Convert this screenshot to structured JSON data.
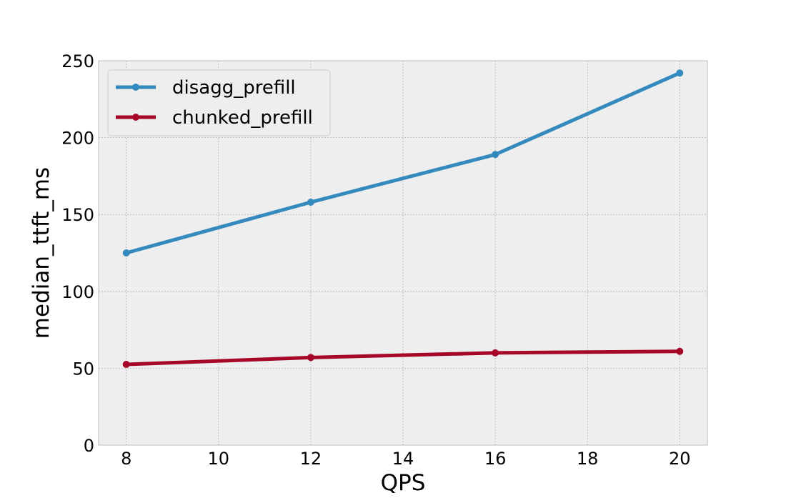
{
  "chart_data": {
    "type": "line",
    "title": "",
    "xlabel": "QPS",
    "ylabel": "median_ttft_ms",
    "x": [
      8,
      12,
      16,
      20
    ],
    "series": [
      {
        "name": "disagg_prefill",
        "color": "#348ABD",
        "values": [
          125,
          158,
          189,
          242
        ]
      },
      {
        "name": "chunked_prefill",
        "color": "#A60628",
        "values": [
          52.5,
          57,
          60,
          61
        ]
      }
    ],
    "xlim": [
      7.4,
      20.6
    ],
    "ylim": [
      0,
      250
    ],
    "xticks": [
      8,
      10,
      12,
      14,
      16,
      18,
      20
    ],
    "yticks": [
      0,
      50,
      100,
      150,
      200,
      250
    ],
    "grid": true,
    "grid_style": "dotted",
    "legend_position": "upper-left",
    "background_color": "#EEEEEE"
  }
}
